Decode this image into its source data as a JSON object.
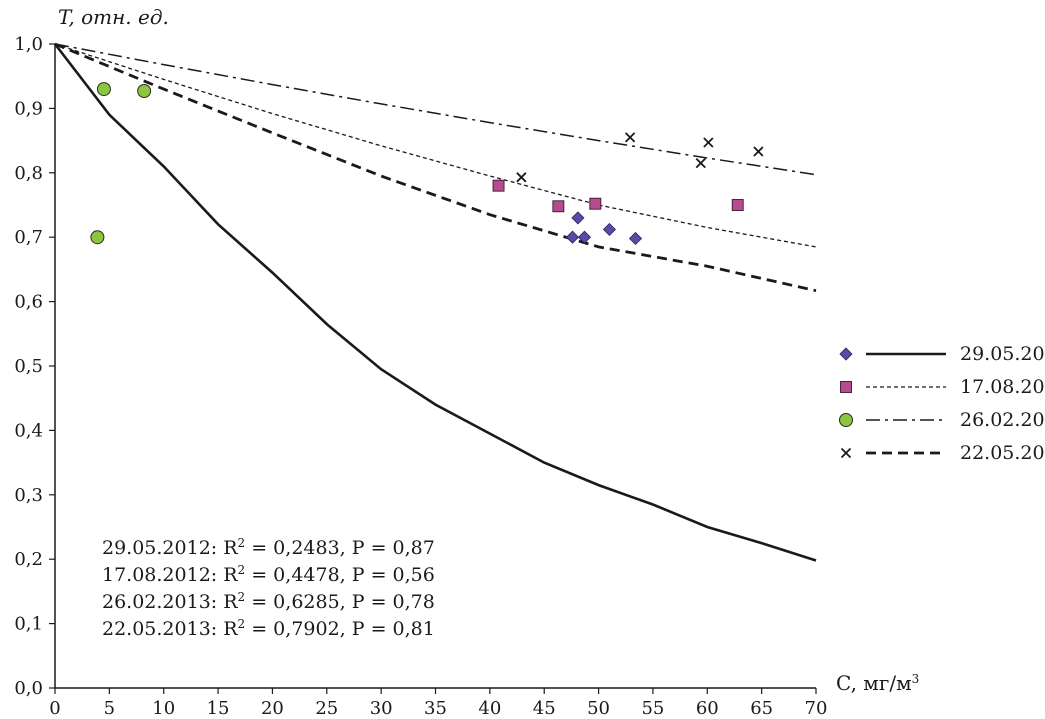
{
  "chart_data": {
    "type": "scatter",
    "xlabel": "C, мг/м^3",
    "ylabel": "T, отн. ед.",
    "xlim": [
      0,
      70
    ],
    "ylim": [
      0,
      1.0
    ],
    "x_ticks": [
      "0",
      "5",
      "10",
      "15",
      "20",
      "25",
      "30",
      "35",
      "40",
      "45",
      "50",
      "55",
      "60",
      "65",
      "70"
    ],
    "y_ticks": [
      "0,0",
      "0,1",
      "0,2",
      "0,3",
      "0,4",
      "0,5",
      "0,6",
      "0,7",
      "0,8",
      "0,9",
      "1,0"
    ],
    "grid": false,
    "legend_position": "right",
    "series": [
      {
        "name": "29.05.2012",
        "marker": "diamond",
        "color": "#5a4aa6",
        "line_style": "solid",
        "points": [
          [
            47.6,
            0.7
          ],
          [
            48.1,
            0.73
          ],
          [
            48.7,
            0.7
          ],
          [
            51.0,
            0.712
          ],
          [
            53.4,
            0.698
          ]
        ],
        "fit": [
          [
            0,
            1.0
          ],
          [
            5,
            0.89
          ],
          [
            10,
            0.81
          ],
          [
            15,
            0.72
          ],
          [
            20,
            0.645
          ],
          [
            25,
            0.565
          ],
          [
            30,
            0.495
          ],
          [
            35,
            0.44
          ],
          [
            40,
            0.395
          ],
          [
            45,
            0.35
          ],
          [
            50,
            0.315
          ],
          [
            55,
            0.285
          ],
          [
            60,
            0.25
          ],
          [
            65,
            0.225
          ],
          [
            70,
            0.198
          ]
        ]
      },
      {
        "name": "17.08.2012",
        "marker": "square",
        "color": "#b84a8f",
        "line_style": "dotted",
        "points": [
          [
            40.8,
            0.78
          ],
          [
            46.3,
            0.748
          ],
          [
            49.7,
            0.752
          ],
          [
            62.8,
            0.75
          ]
        ],
        "fit": [
          [
            0,
            1.0
          ],
          [
            10,
            0.945
          ],
          [
            20,
            0.892
          ],
          [
            30,
            0.842
          ],
          [
            40,
            0.795
          ],
          [
            50,
            0.75
          ],
          [
            60,
            0.715
          ],
          [
            70,
            0.685
          ]
        ]
      },
      {
        "name": "26.02.2013",
        "marker": "circle",
        "color": "#8cc63f",
        "line_style": "dash-dot",
        "points": [
          [
            3.9,
            0.7
          ],
          [
            4.5,
            0.93
          ],
          [
            8.2,
            0.927
          ]
        ],
        "fit": [
          [
            0,
            1.0
          ],
          [
            10,
            0.968
          ],
          [
            20,
            0.937
          ],
          [
            30,
            0.907
          ],
          [
            40,
            0.878
          ],
          [
            50,
            0.85
          ],
          [
            60,
            0.823
          ],
          [
            70,
            0.797
          ]
        ]
      },
      {
        "name": "22.05.2013",
        "marker": "x",
        "color": "#1a1a1a",
        "line_style": "dashed",
        "points": [
          [
            42.9,
            0.793
          ],
          [
            52.9,
            0.855
          ],
          [
            59.4,
            0.815
          ],
          [
            60.1,
            0.847
          ],
          [
            64.7,
            0.833
          ]
        ],
        "fit": [
          [
            0,
            1.0
          ],
          [
            10,
            0.93
          ],
          [
            20,
            0.862
          ],
          [
            30,
            0.795
          ],
          [
            40,
            0.735
          ],
          [
            50,
            0.685
          ],
          [
            60,
            0.655
          ],
          [
            70,
            0.617
          ]
        ]
      }
    ],
    "annotations": [
      "29.05.2012: R^2 = 0,2483, P = 0,87",
      "17.08.2012: R^2 = 0,4478, P = 0,56",
      "26.02.2013: R^2 = 0,6285, P = 0,78",
      "22.05.2013: R^2 = 0,7902, P = 0,81"
    ]
  }
}
